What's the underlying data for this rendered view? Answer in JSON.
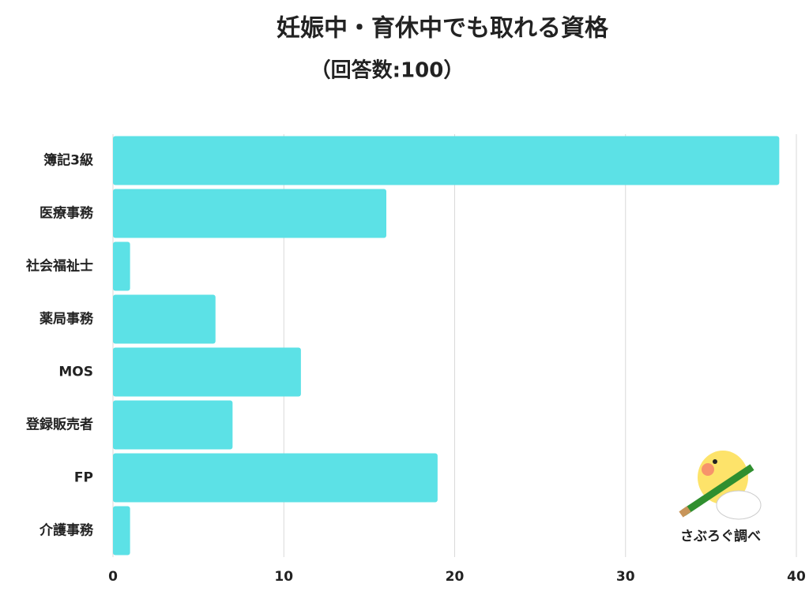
{
  "chart_data": {
    "type": "bar",
    "orientation": "horizontal",
    "title": "妊娠中・育休中でも取れる資格",
    "subtitle": "（回答数:100）",
    "categories": [
      "簿記3級",
      "医療事務",
      "社会福祉士",
      "薬局事務",
      "MOS",
      "登録販売者",
      "FP",
      "介護事務"
    ],
    "values": [
      39,
      16,
      1,
      6,
      11,
      7,
      19,
      1
    ],
    "color": "#5ce1e6",
    "xlim": [
      0,
      40
    ],
    "xticks": [
      0,
      10,
      20,
      30,
      40
    ],
    "grid": true,
    "annotation": "さぶろぐ調べ"
  }
}
